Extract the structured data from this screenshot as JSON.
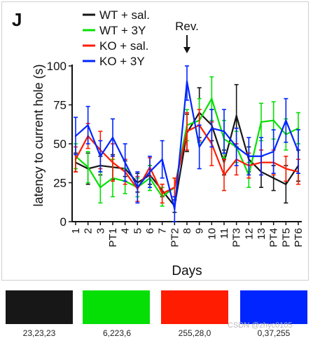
{
  "panel_label": "J",
  "annotation": {
    "text": "Rev.",
    "arrow": "↓"
  },
  "watermark": "CSDN @zhyc0105",
  "swatches": [
    {
      "color": "#171717",
      "label": "23,23,23"
    },
    {
      "color": "#06df06",
      "label": "6,223,6"
    },
    {
      "color": "#ff1c00",
      "label": "255,28,0"
    },
    {
      "color": "#0025ff",
      "label": "0,37,255"
    }
  ],
  "chart_data": {
    "type": "line",
    "xlabel": "Days",
    "ylabel": "latency to current hole (s)",
    "ylim": [
      0,
      100
    ],
    "yticks": [
      0,
      25,
      50,
      75,
      100
    ],
    "categories": [
      "1",
      "2",
      "3",
      "PT1",
      "4",
      "5",
      "6",
      "7",
      "PT2",
      "8",
      "9",
      "10",
      "11",
      "PT3",
      "12",
      "13",
      "PT4",
      "PT5",
      "PT6"
    ],
    "legend_position": "top-left",
    "grid": false,
    "series": [
      {
        "name": "WT + sal.",
        "color": "#171717",
        "values": [
          38,
          34,
          36,
          35,
          34,
          25,
          30,
          20,
          10,
          57,
          70,
          62,
          38,
          68,
          40,
          32,
          28,
          24,
          36
        ],
        "errors": [
          6,
          10,
          6,
          8,
          5,
          6,
          6,
          4,
          4,
          12,
          16,
          10,
          8,
          20,
          8,
          10,
          8,
          12,
          10
        ]
      },
      {
        "name": "WT + 3Y",
        "color": "#06df06",
        "values": [
          42,
          35,
          22,
          28,
          26,
          22,
          28,
          16,
          22,
          62,
          65,
          79,
          53,
          48,
          30,
          64,
          65,
          56,
          60
        ],
        "errors": [
          8,
          10,
          10,
          12,
          8,
          6,
          8,
          6,
          6,
          10,
          14,
          14,
          12,
          10,
          8,
          12,
          12,
          10,
          10
        ]
      },
      {
        "name": "KO + sal.",
        "color": "#ff1c00",
        "values": [
          40,
          55,
          46,
          38,
          32,
          21,
          35,
          18,
          22,
          58,
          62,
          50,
          30,
          40,
          36,
          38,
          38,
          34,
          32
        ],
        "errors": [
          8,
          8,
          12,
          12,
          8,
          8,
          6,
          6,
          6,
          12,
          10,
          14,
          10,
          10,
          8,
          8,
          8,
          8,
          8
        ]
      },
      {
        "name": "KO + 3Y",
        "color": "#0025ff",
        "values": [
          55,
          62,
          42,
          54,
          38,
          22,
          32,
          40,
          8,
          90,
          48,
          60,
          58,
          48,
          42,
          42,
          45,
          65,
          45
        ],
        "errors": [
          12,
          12,
          10,
          12,
          12,
          10,
          10,
          12,
          8,
          12,
          14,
          12,
          14,
          12,
          12,
          12,
          14,
          14,
          14
        ]
      }
    ]
  }
}
